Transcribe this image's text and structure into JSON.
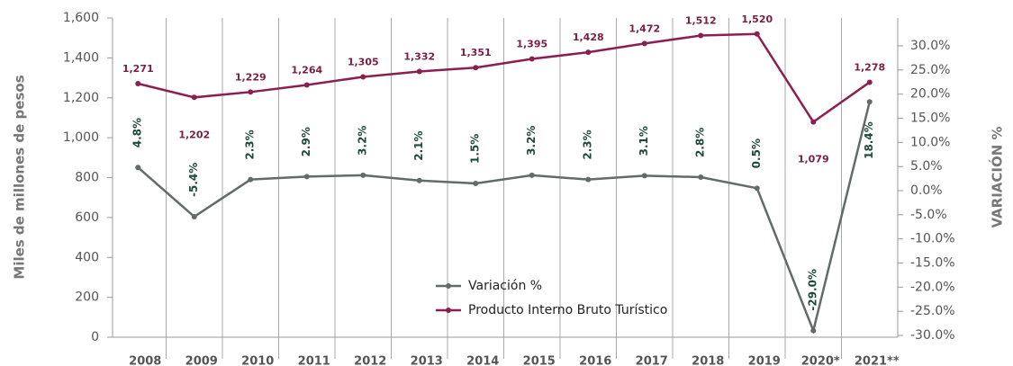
{
  "chart_data": {
    "type": "line",
    "categories": [
      "2008",
      "2009",
      "2010",
      "2011",
      "2012",
      "2013",
      "2014",
      "2015",
      "2016",
      "2017",
      "2018",
      "2019",
      "2020*",
      "2021**"
    ],
    "ylabel": "Miles de millones de pesos",
    "y2label": "VARIACIÓN %",
    "ylim": [
      0,
      1600
    ],
    "yticks": [
      0,
      200,
      400,
      600,
      800,
      {
        "value": 1000,
        "label": "1,000"
      },
      {
        "value": 1200,
        "label": "1,200"
      },
      {
        "value": 1400,
        "label": "1,400"
      },
      {
        "value": 1600,
        "label": "1,600"
      }
    ],
    "y2lim": [
      -30,
      30
    ],
    "y2ticks": [
      {
        "value": -30,
        "label": "-30.0%"
      },
      {
        "value": -25,
        "label": "-25.0%"
      },
      {
        "value": -20,
        "label": "-20.0%"
      },
      {
        "value": -15,
        "label": "-15.0%"
      },
      {
        "value": -10,
        "label": "-10.0%"
      },
      {
        "value": -5,
        "label": "-5.0%"
      },
      {
        "value": 0,
        "label": "0.0%"
      },
      {
        "value": 5,
        "label": "5.0%"
      },
      {
        "value": 10,
        "label": "10.0%"
      },
      {
        "value": 15,
        "label": "15.0%"
      },
      {
        "value": 20,
        "label": "20.0%"
      },
      {
        "value": 25,
        "label": "25.0%"
      },
      {
        "value": 30,
        "label": "30.0%"
      }
    ],
    "legend": "lower center",
    "series": [
      {
        "name": "Variación %",
        "color": "#636b6a",
        "axis": "y2",
        "values": [
          4.8,
          -5.4,
          2.3,
          2.9,
          3.2,
          2.1,
          1.5,
          3.2,
          2.3,
          3.1,
          2.8,
          0.5,
          -29.0,
          18.4
        ],
        "value_labels": [
          "4.8%",
          "-5.4%",
          "2.3%",
          "2.9%",
          "3.2%",
          "2.1%",
          "1.5%",
          "3.2%",
          "2.3%",
          "3.1%",
          "2.8%",
          "0.5%",
          "-29.0%",
          "18.4%"
        ]
      },
      {
        "name": "Producto Interno Bruto Turístico",
        "color": "#8b2050",
        "values": [
          1271,
          1202,
          1229,
          1264,
          1305,
          1332,
          1351,
          1395,
          1428,
          1472,
          1512,
          1520,
          1079,
          1278
        ],
        "value_labels": [
          "1,271",
          "1,202",
          "1,229",
          "1,264",
          "1,305",
          "1,332",
          "1,351",
          "1,395",
          "1,428",
          "1,472",
          "1,512",
          "1,520",
          "1,079",
          "1,278"
        ]
      }
    ]
  }
}
